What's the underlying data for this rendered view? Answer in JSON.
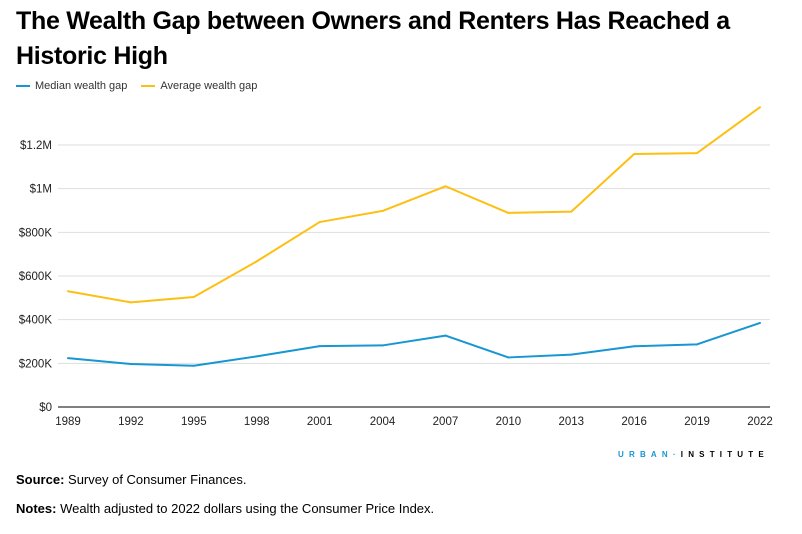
{
  "chart_data": {
    "type": "line",
    "title": "The Wealth Gap between Owners and Renters Has Reached a Historic High",
    "xlabel": "",
    "ylabel": "",
    "x": [
      1989,
      1992,
      1995,
      1998,
      2001,
      2004,
      2007,
      2010,
      2013,
      2016,
      2019,
      2022
    ],
    "x_tick_labels": [
      "1989",
      "1992",
      "1995",
      "1998",
      "2001",
      "2004",
      "2007",
      "2010",
      "2013",
      "2016",
      "2019",
      "2022"
    ],
    "y_ticks": [
      0,
      200000,
      400000,
      600000,
      800000,
      1000000,
      1200000
    ],
    "y_tick_labels": [
      "$0",
      "$200K",
      "$400K",
      "$600K",
      "$800K",
      "$1M",
      "$1.2M"
    ],
    "ylim": [
      0,
      1200000
    ],
    "grid": true,
    "legend_placement": "top-left",
    "series": [
      {
        "name": "Median wealth gap",
        "color": "#1696d2",
        "values": [
          224000,
          197000,
          189000,
          232000,
          279000,
          282000,
          327000,
          227000,
          240000,
          278000,
          287000,
          385000
        ]
      },
      {
        "name": "Average wealth gap",
        "color": "#fdbf11",
        "values": [
          530000,
          479000,
          504000,
          667000,
          847000,
          898000,
          1011000,
          889000,
          895000,
          1159000,
          1163000,
          1373000
        ]
      }
    ]
  },
  "footer": {
    "logo_left": "URBAN",
    "logo_sep": "·",
    "logo_right": "INSTITUTE",
    "source_label": "Source:",
    "source_text": " Survey of Consumer Finances.",
    "notes_label": "Notes:",
    "notes_text": " Wealth adjusted to 2022 dollars using the Consumer Price Index."
  }
}
